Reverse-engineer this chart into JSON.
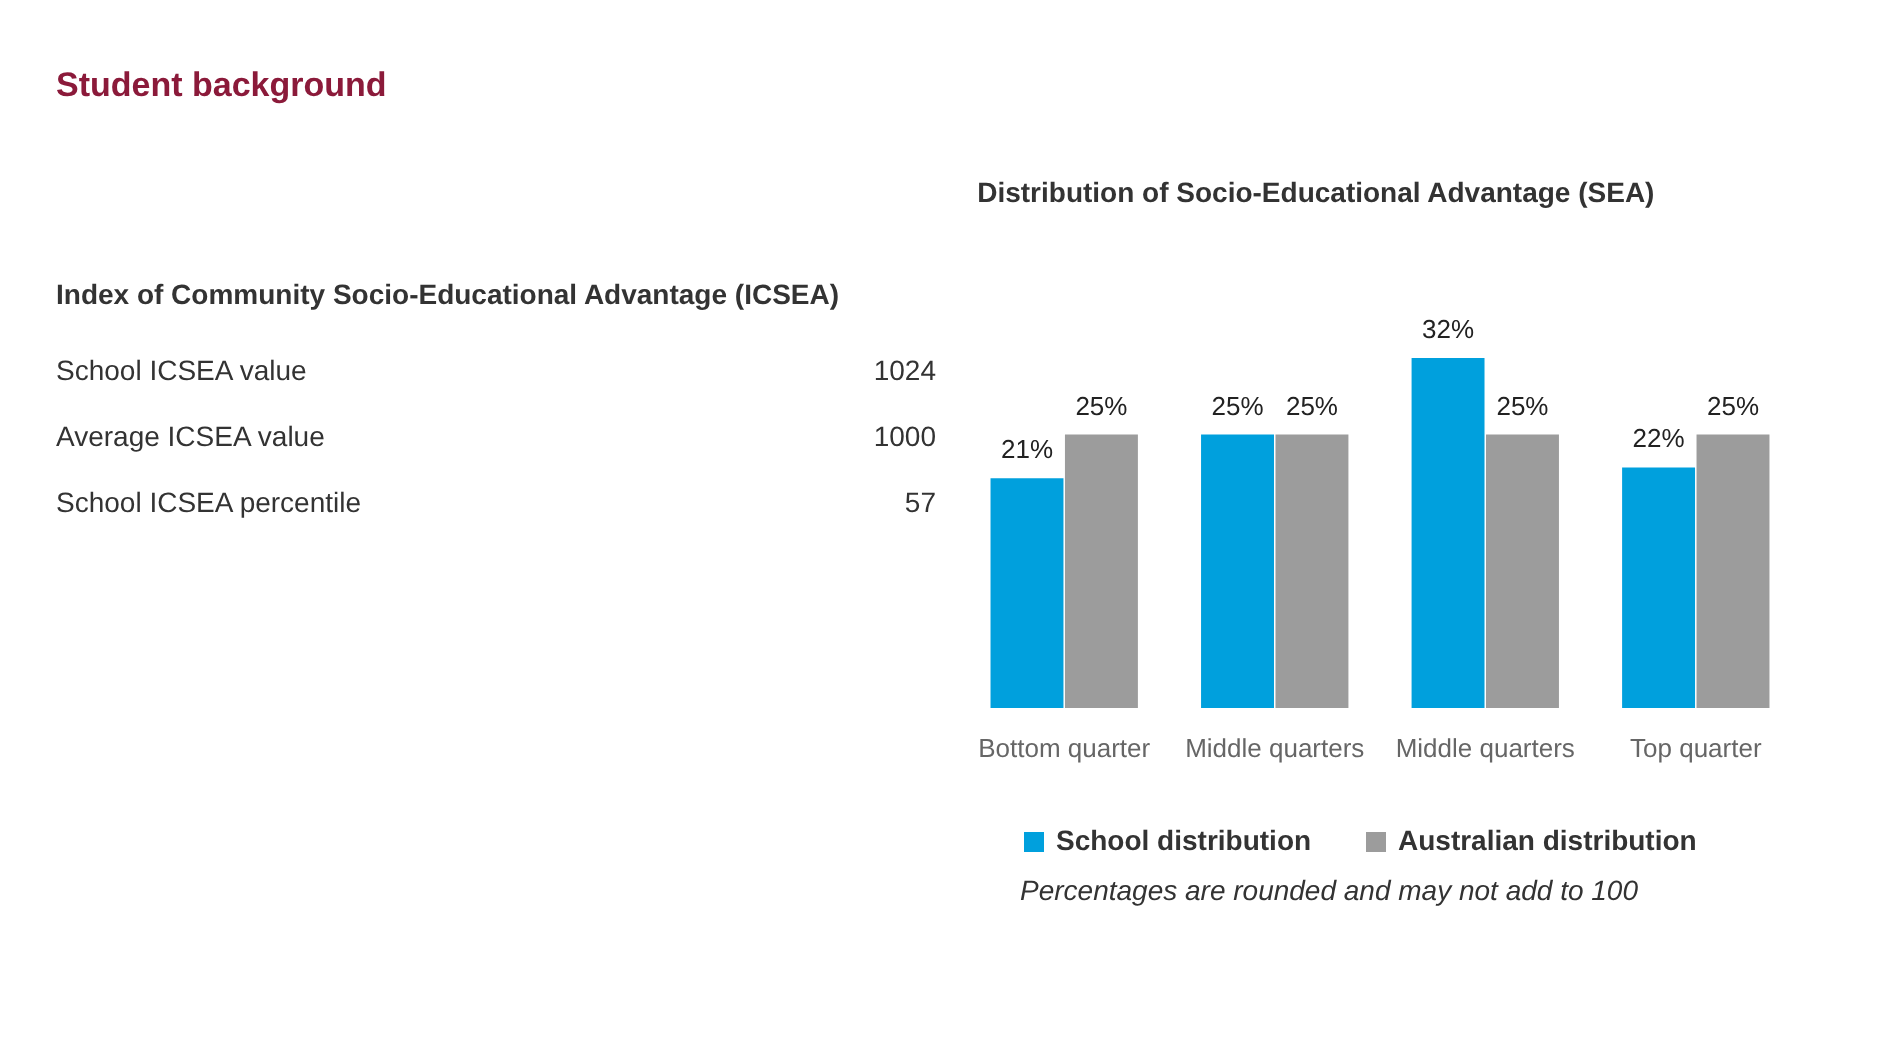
{
  "chart_data": [
    {
      "type": "other",
      "title": "Student background",
      "subtitle": "Index of Community Socio-Educational Advantage (ICSEA)",
      "categories": [
        "School ICSEA value",
        "Average ICSEA value",
        "School ICSEA percentile"
      ],
      "values": [
        1024,
        1000,
        57
      ],
      "data_labels": true
    },
    {
      "type": "bar",
      "title": "Distribution of Socio-Educational Advantage (SEA)",
      "categories": [
        "Bottom quarter",
        "Middle quarters",
        "Middle quarters",
        "Top quarter"
      ],
      "series": [
        {
          "name": "School distribution",
          "color": "#00a0dd",
          "values": [
            21,
            25,
            32,
            22
          ],
          "value_labels": [
            "21%",
            "25%",
            "32%",
            "22%"
          ]
        },
        {
          "name": "Australian distribution",
          "color": "#9c9c9c",
          "values": [
            25,
            25,
            25,
            25
          ],
          "value_labels": [
            "25%",
            "25%",
            "25%",
            "25%"
          ]
        }
      ],
      "legend": "bottom",
      "annotations": [
        "Percentages are rounded and may not add to 100"
      ]
    }
  ]
}
